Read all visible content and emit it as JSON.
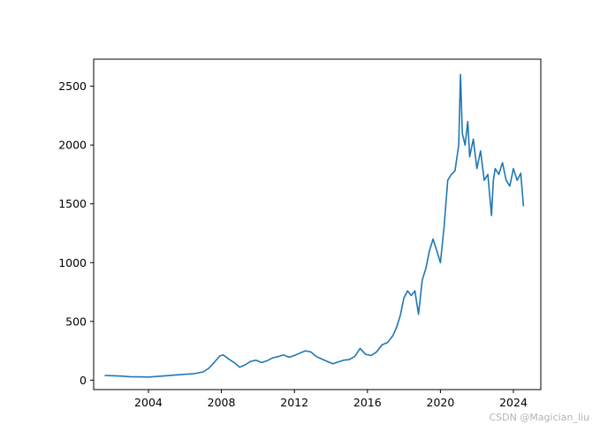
{
  "watermark": "CSDN @Magician_liu",
  "chart_data": {
    "type": "line",
    "title": "",
    "xlabel": "",
    "ylabel": "",
    "xlim": [
      2001.0,
      2025.5
    ],
    "ylim": [
      -80,
      2730
    ],
    "x_ticks": [
      2004,
      2008,
      2012,
      2016,
      2020,
      2024
    ],
    "y_ticks": [
      0,
      500,
      1000,
      1500,
      2000,
      2500
    ],
    "grid": false,
    "legend": "none",
    "line_color": "#1f77b4",
    "series": [
      {
        "x": [
          2001.6,
          2002.0,
          2002.5,
          2003.0,
          2003.5,
          2004.0,
          2004.5,
          2005.0,
          2005.5,
          2006.0,
          2006.5,
          2007.0,
          2007.3,
          2007.6,
          2007.9,
          2008.1,
          2008.4,
          2008.7,
          2009.0,
          2009.3,
          2009.6,
          2009.9,
          2010.2,
          2010.5,
          2010.8,
          2011.1,
          2011.4,
          2011.7,
          2012.0,
          2012.3,
          2012.6,
          2012.9,
          2013.2,
          2013.5,
          2013.8,
          2014.1,
          2014.4,
          2014.7,
          2015.0,
          2015.3,
          2015.6,
          2015.9,
          2016.2,
          2016.5,
          2016.8,
          2017.1,
          2017.4,
          2017.6,
          2017.8,
          2018.0,
          2018.2,
          2018.4,
          2018.6,
          2018.8,
          2019.0,
          2019.2,
          2019.4,
          2019.6,
          2019.8,
          2020.0,
          2020.2,
          2020.4,
          2020.6,
          2020.8,
          2021.0,
          2021.1,
          2021.2,
          2021.35,
          2021.5,
          2021.6,
          2021.8,
          2022.0,
          2022.2,
          2022.4,
          2022.6,
          2022.8,
          2022.9,
          2023.0,
          2023.2,
          2023.4,
          2023.6,
          2023.8,
          2024.0,
          2024.2,
          2024.4,
          2024.55
        ],
        "y": [
          40,
          38,
          35,
          30,
          28,
          27,
          32,
          38,
          45,
          50,
          55,
          70,
          100,
          150,
          205,
          215,
          180,
          150,
          110,
          130,
          160,
          170,
          150,
          165,
          190,
          200,
          215,
          195,
          210,
          230,
          250,
          240,
          200,
          180,
          160,
          140,
          155,
          170,
          175,
          200,
          270,
          220,
          210,
          240,
          300,
          320,
          380,
          450,
          550,
          700,
          760,
          720,
          760,
          560,
          850,
          950,
          1100,
          1200,
          1100,
          1000,
          1300,
          1700,
          1750,
          1780,
          2000,
          2600,
          2100,
          2000,
          2200,
          1900,
          2050,
          1800,
          1950,
          1700,
          1750,
          1400,
          1700,
          1800,
          1750,
          1850,
          1700,
          1650,
          1800,
          1700,
          1760,
          1480
        ]
      }
    ]
  }
}
